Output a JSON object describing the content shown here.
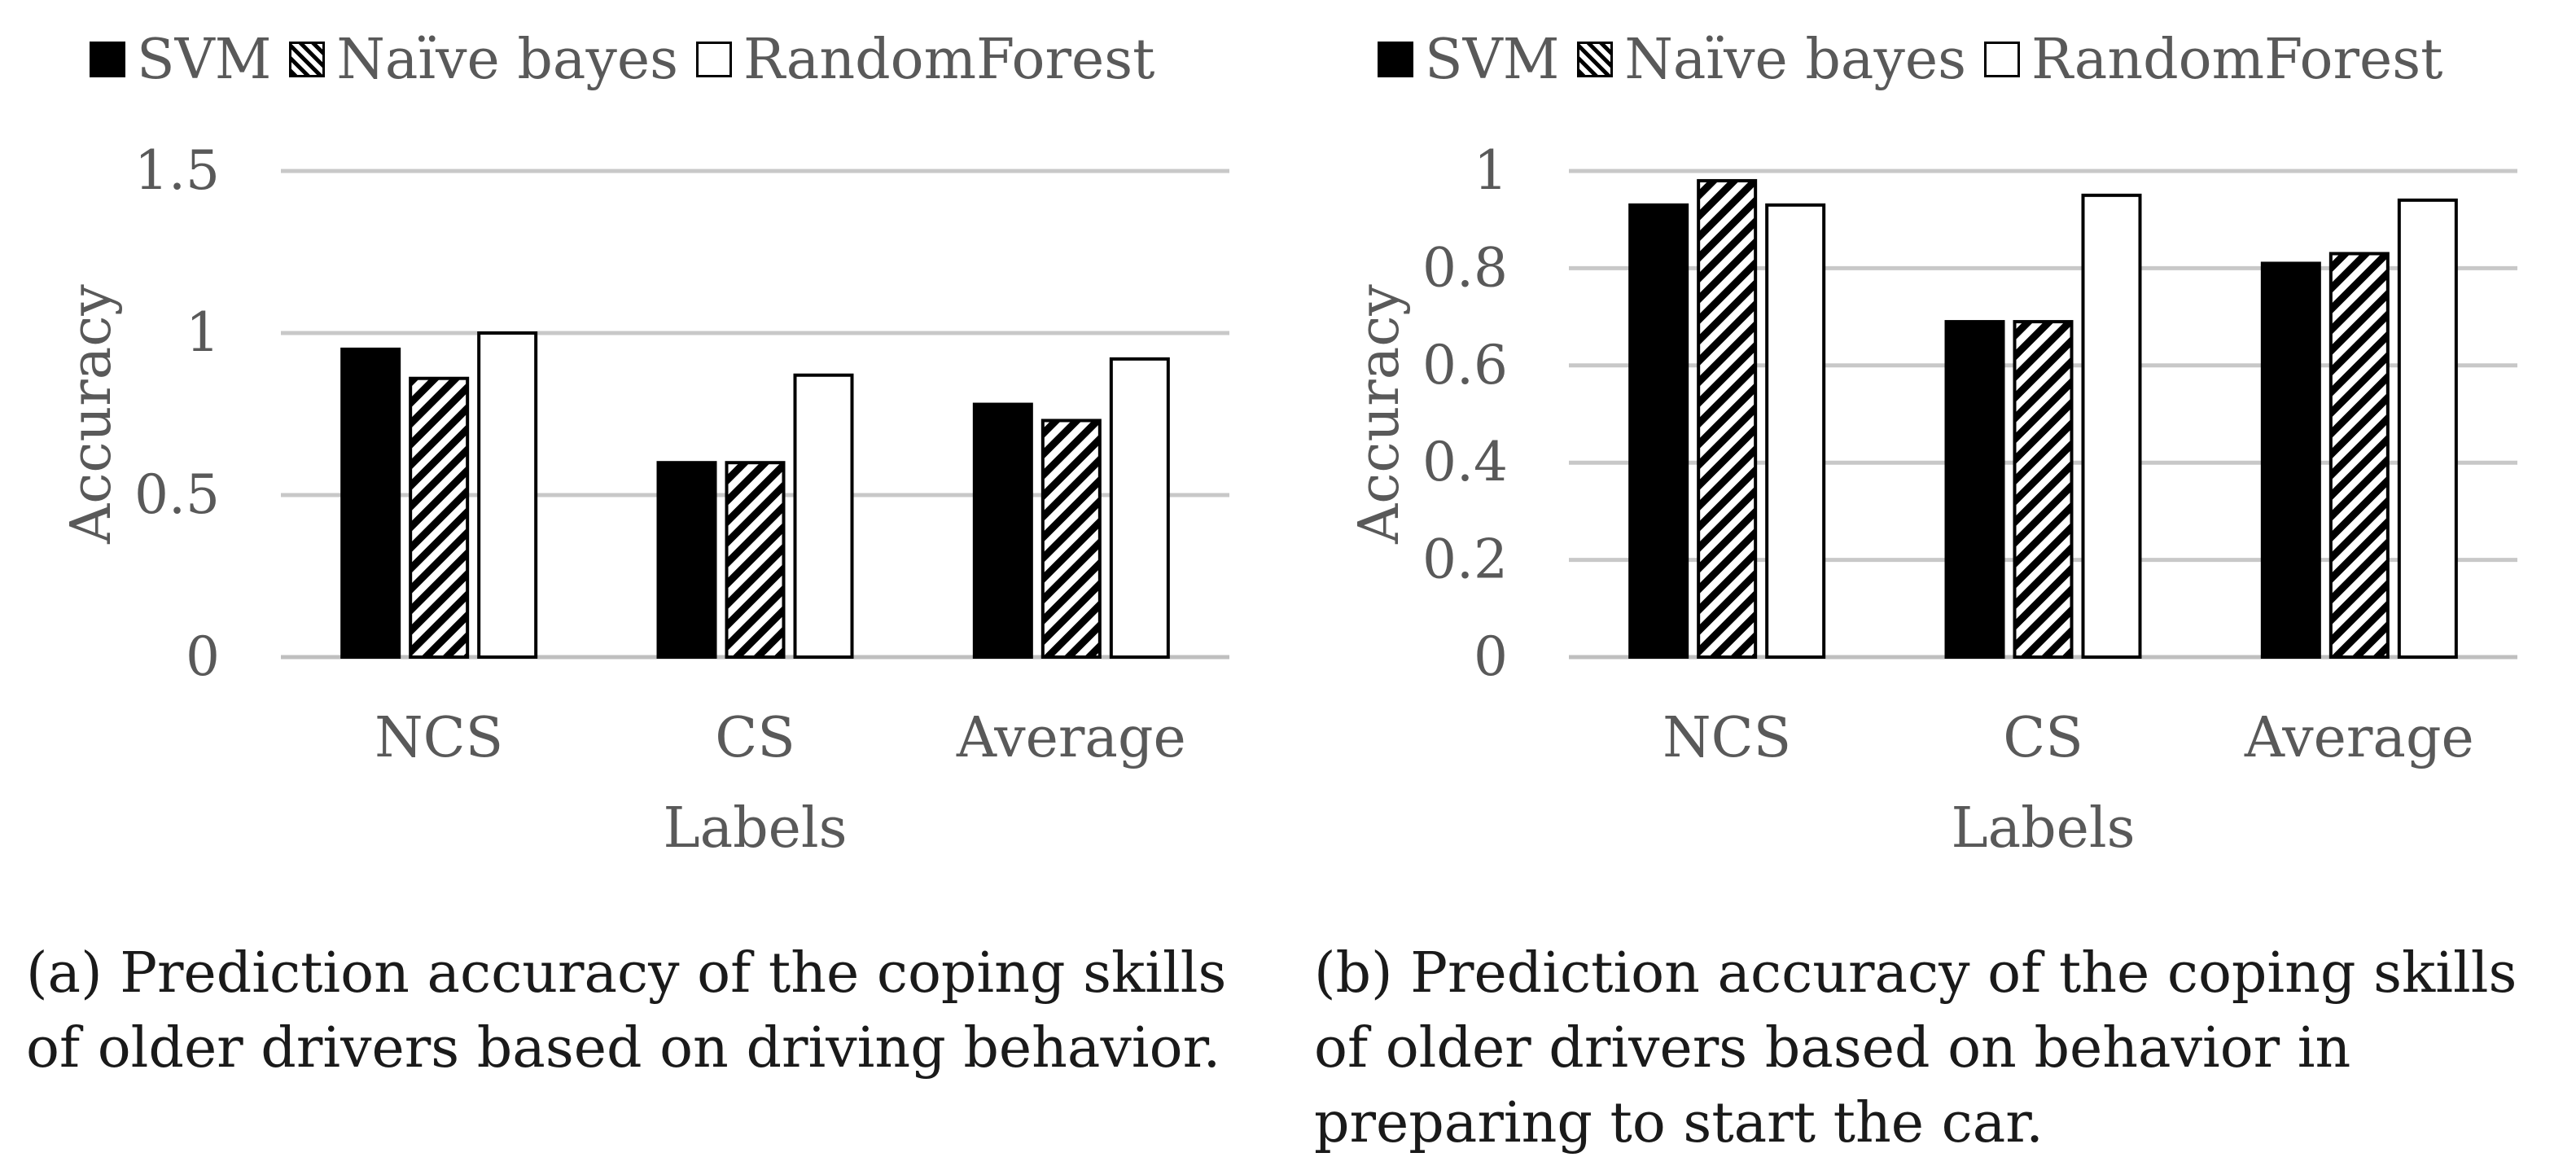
{
  "chart_data": [
    {
      "type": "bar",
      "categories": [
        "NCS",
        "CS",
        "Average"
      ],
      "series": [
        {
          "name": "SVM",
          "values": [
            0.95,
            0.6,
            0.78
          ]
        },
        {
          "name": "Naïve bayes",
          "values": [
            0.86,
            0.6,
            0.73
          ]
        },
        {
          "name": "RandomForest",
          "values": [
            1.0,
            0.87,
            0.92
          ]
        }
      ],
      "xlabel": "Labels",
      "ylabel": "Accuracy",
      "ylim": [
        0,
        1.5
      ],
      "yticks": [
        "0",
        "0.5",
        "1",
        "1.5"
      ],
      "grid": true,
      "legend": "top",
      "caption": "(a) Prediction accuracy of the coping skills of older drivers based on driving behavior."
    },
    {
      "type": "bar",
      "categories": [
        "NCS",
        "CS",
        "Average"
      ],
      "series": [
        {
          "name": "SVM",
          "values": [
            0.93,
            0.69,
            0.81
          ]
        },
        {
          "name": "Naïve bayes",
          "values": [
            0.98,
            0.69,
            0.83
          ]
        },
        {
          "name": "RandomForest",
          "values": [
            0.93,
            0.95,
            0.94
          ]
        }
      ],
      "xlabel": "Labels",
      "ylabel": "Accuracy",
      "ylim": [
        0,
        1
      ],
      "yticks": [
        "0",
        "0.2",
        "0.4",
        "0.6",
        "0.8",
        "1"
      ],
      "grid": true,
      "legend": "top",
      "caption": "(b) Prediction accuracy of the coping skills of older drivers based on behavior in preparing to start the car."
    }
  ],
  "colors": {
    "series_fill": [
      "#000000",
      "hatch",
      "#ffffff"
    ],
    "gridline": "#c8c8c8",
    "text": "#595959"
  }
}
